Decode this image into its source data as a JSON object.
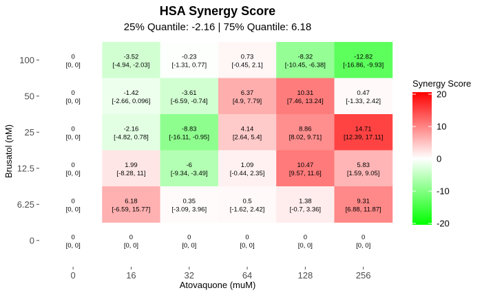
{
  "chart_data": {
    "type": "heatmap",
    "title": "HSA Synergy Score",
    "subtitle": "25% Quantile: -2.16 | 75% Quantile: 6.18",
    "xlabel": "Atovaquone (muM)",
    "ylabel": "Brusatol (nM)",
    "x_categories": [
      "0",
      "16",
      "32",
      "64",
      "128",
      "256"
    ],
    "y_categories": [
      "100",
      "50",
      "25",
      "12.5",
      "6.25",
      "0"
    ],
    "values": [
      [
        0,
        -3.52,
        -0.23,
        0.73,
        -8.32,
        -12.82
      ],
      [
        0,
        -1.42,
        -3.61,
        6.37,
        10.31,
        0.47
      ],
      [
        0,
        -2.16,
        -8.83,
        4.14,
        8.86,
        14.71
      ],
      [
        0,
        1.99,
        -6,
        1.09,
        10.47,
        5.83
      ],
      [
        0,
        6.18,
        0.35,
        0.5,
        1.38,
        9.31
      ],
      [
        0,
        0,
        0,
        0,
        0,
        0
      ]
    ],
    "value_labels": [
      [
        "0",
        "-3.52",
        "-0.23",
        "0.73",
        "-8.32",
        "-12.82"
      ],
      [
        "0",
        "-1.42",
        "-3.61",
        "6.37",
        "10.31",
        "0.47"
      ],
      [
        "0",
        "-2.16",
        "-8.83",
        "4.14",
        "8.86",
        "14.71"
      ],
      [
        "0",
        "1.99",
        "-6",
        "1.09",
        "10.47",
        "5.83"
      ],
      [
        "0",
        "6.18",
        "0.35",
        "0.5",
        "1.38",
        "9.31"
      ],
      [
        "0",
        "0",
        "0",
        "0",
        "0",
        "0"
      ]
    ],
    "intervals": [
      [
        "[0, 0]",
        "[-4.94, -2.03]",
        "[-1.31, 0.77]",
        "[-0.45, 2.1]",
        "[-10.45, -6.38]",
        "[-16.86, -9.93]"
      ],
      [
        "[0, 0]",
        "[-2.66, 0.096]",
        "[-6.59, -0.74]",
        "[4.9, 7.79]",
        "[7.46, 13.24]",
        "[-1.33, 2.42]"
      ],
      [
        "[0, 0]",
        "[-4.82, 0.78]",
        "[-16.11, -0.95]",
        "[2.64, 5.4]",
        "[8.02, 9.71]",
        "[12.39, 17.11]"
      ],
      [
        "[0, 0]",
        "[-8.28, 11]",
        "[-9.34, -3.49]",
        "[-0.44, 2.35]",
        "[9.57, 11.6]",
        "[1.59, 9.05]"
      ],
      [
        "[0, 0]",
        "[-6.59, 15.77]",
        "[-3.09, 3.96]",
        "[-1.62, 2.42]",
        "[-0.7, 3.36]",
        "[6.88, 11.87]"
      ],
      [
        "[0, 0]",
        "[0, 0]",
        "[0, 0]",
        "[0, 0]",
        "[0, 0]",
        "[0, 0]"
      ]
    ],
    "legend": {
      "title": "Synergy Score",
      "ticks": [
        "20",
        "10",
        "0",
        "-10",
        "-20"
      ],
      "range": [
        -20,
        20
      ],
      "placement": "right"
    },
    "colors": {
      "high": "#ff0000",
      "mid": "#ffffff",
      "low": "#00ff00"
    },
    "grid": false
  }
}
